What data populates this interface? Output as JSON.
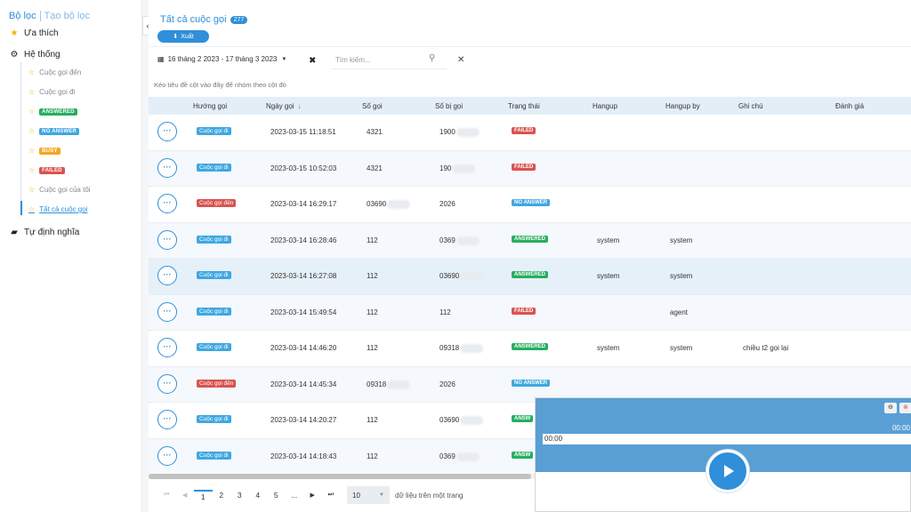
{
  "sidebar": {
    "tab_filters": "Bộ lọc",
    "tab_create": "Tạo bộ lọc",
    "favorites": "Ưa thích",
    "system": "Hệ thống",
    "custom": "Tự định nghĩa",
    "items": [
      {
        "label": "Cuộc gọi đến"
      },
      {
        "label": "Cuộc gọi đi"
      },
      {
        "label": "ANSWERED"
      },
      {
        "label": "NO ANSWER"
      },
      {
        "label": "BUSY"
      },
      {
        "label": "FAILED"
      },
      {
        "label": "Cuộc gọi của tôi"
      },
      {
        "label": "Tất cả cuộc gọi"
      }
    ]
  },
  "header": {
    "title": "Tất cả cuộc gọi",
    "count": "277",
    "export_label": "Xuất",
    "collapse_icon": "‹"
  },
  "filters": {
    "date_range": "16 tháng 2 2023 - 17 tháng 3 2023",
    "search_placeholder": "Tìm kiếm..."
  },
  "group_hint": "Kéo tiêu đề cột vào đây để nhóm theo cột đó",
  "table": {
    "columns": [
      "Hướng gọi",
      "Ngày gọi",
      "Số gọi",
      "Số bị gọi",
      "Trạng thái",
      "Hangup",
      "Hangup by",
      "Ghi chú",
      "Đánh giá"
    ],
    "rows": [
      {
        "direction": "Cuộc gọi đi",
        "date": "2023-03-15 11:18:51",
        "caller": "4321",
        "callee": "1900",
        "status": "FAILED",
        "hangup": "",
        "hangup_by": "",
        "note": ""
      },
      {
        "direction": "Cuộc gọi đi",
        "date": "2023-03-15 10:52:03",
        "caller": "4321",
        "callee": "190",
        "status": "FAILED",
        "hangup": "",
        "hangup_by": "",
        "note": ""
      },
      {
        "direction": "Cuộc gọi đến",
        "date": "2023-03-14 16:29:17",
        "caller": "03690",
        "callee": "2026",
        "status": "NO ANSWER",
        "hangup": "",
        "hangup_by": "",
        "note": ""
      },
      {
        "direction": "Cuộc gọi đi",
        "date": "2023-03-14 16:28:46",
        "caller": "112",
        "callee": "0369",
        "status": "ANSWERED",
        "hangup": "system",
        "hangup_by": "system",
        "note": ""
      },
      {
        "direction": "Cuộc gọi đi",
        "date": "2023-03-14 16:27:08",
        "caller": "112",
        "callee": "03690",
        "status": "ANSWERED",
        "hangup": "system",
        "hangup_by": "system",
        "note": ""
      },
      {
        "direction": "Cuộc gọi đi",
        "date": "2023-03-14 15:49:54",
        "caller": "112",
        "callee": "112",
        "status": "FAILED",
        "hangup": "",
        "hangup_by": "agent",
        "note": ""
      },
      {
        "direction": "Cuộc gọi đi",
        "date": "2023-03-14 14:46:20",
        "caller": "112",
        "callee": "09318",
        "status": "ANSWERED",
        "hangup": "system",
        "hangup_by": "system",
        "note": "chiều t2 gọi lại"
      },
      {
        "direction": "Cuộc gọi đến",
        "date": "2023-03-14 14:45:34",
        "caller": "09318",
        "callee": "2026",
        "status": "NO ANSWER",
        "hangup": "",
        "hangup_by": "",
        "note": ""
      },
      {
        "direction": "Cuộc gọi đi",
        "date": "2023-03-14 14:20:27",
        "caller": "112",
        "callee": "03690",
        "status": "ANSW",
        "hangup": "",
        "hangup_by": "",
        "note": ""
      },
      {
        "direction": "Cuộc gọi đi",
        "date": "2023-03-14 14:18:43",
        "caller": "112",
        "callee": "0369",
        "status": "ANSW",
        "hangup": "",
        "hangup_by": "",
        "note": ""
      }
    ]
  },
  "pagination": {
    "pages": [
      "1",
      "2",
      "3",
      "4",
      "5",
      "..."
    ],
    "page_size": "10",
    "per_page_label": "dữ liệu trên một trang"
  },
  "player": {
    "time_left": "00:00",
    "time_right": "00:00"
  },
  "colors": {
    "accent": "#2f8fd8",
    "answered": "#27ae60",
    "no_answer": "#3fa7e0",
    "busy": "#f5a623",
    "failed": "#d9534f"
  }
}
